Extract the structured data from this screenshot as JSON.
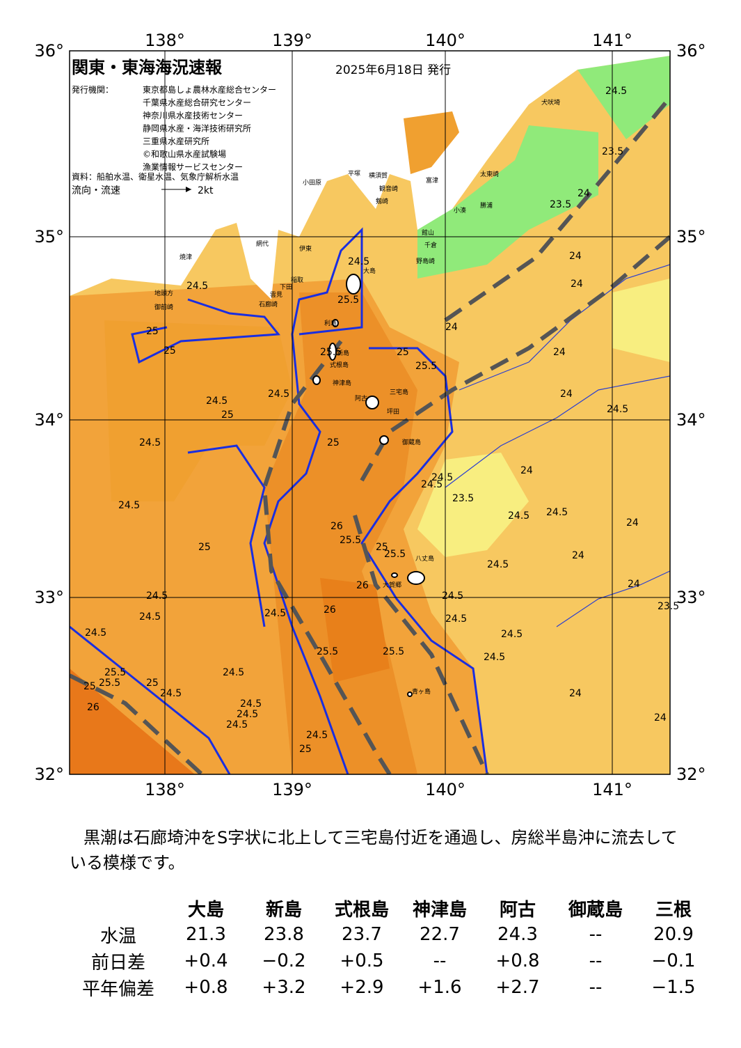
{
  "header": {
    "title": "関東・東海海況速報",
    "date": "2025年6月18日 発行",
    "issuer_label": "発行機関：",
    "issuers": [
      "東京都島しょ農林水産総合センター",
      "千葉県水産総合研究センター",
      "神奈川県水産技術センター",
      "静岡県水産・海洋技術研究所",
      "三重県水産研究所",
      "©和歌山県水産試験場",
      "漁業情報サービスセンター"
    ],
    "source": "資料：船舶水温、衛星水温、気象庁解析水温",
    "legend_label": "流向・流速",
    "legend_speed": "2kt"
  },
  "axes": {
    "lon_labels": [
      "138°",
      "139°",
      "140°",
      "141°"
    ],
    "lat_labels": [
      "36°",
      "35°",
      "34°",
      "33°",
      "32°"
    ]
  },
  "places": [
    "犬吠埼",
    "太東崎",
    "勝浦",
    "小湊",
    "富津",
    "館山",
    "千倉",
    "野島崎",
    "横須賀",
    "観音崎",
    "剱崎",
    "平塚",
    "小田原",
    "網代",
    "伊東",
    "稲取",
    "下田",
    "雲見",
    "石廊崎",
    "焼津",
    "地頭方",
    "御前崎",
    "大島",
    "利島",
    "新島",
    "式根島",
    "神津島",
    "三宅島",
    "阿古",
    "坪田",
    "御蔵島",
    "八丈島",
    "大賀郷",
    "青ヶ島"
  ],
  "contour_labels": [
    "24.5",
    "23.5",
    "24",
    "23.5",
    "24",
    "24",
    "24",
    "24",
    "24",
    "24.5",
    "24",
    "24.5",
    "23.5",
    "24",
    "24.5",
    "24.5",
    "24",
    "24",
    "24",
    "24",
    "23.5",
    "24.5",
    "24.5",
    "24.5",
    "25",
    "25.5",
    "24.5",
    "25",
    "25",
    "24.5",
    "25",
    "24.5",
    "24.5",
    "24.5",
    "25",
    "24.5",
    "24.5",
    "25",
    "24.5",
    "25.5",
    "26",
    "24.5",
    "24.5",
    "24.5",
    "25.5",
    "25.5",
    "25.5",
    "26",
    "26",
    "25.5",
    "25.5",
    "24.5",
    "25",
    "25",
    "25.5",
    "24.5",
    "24.5",
    "24.5",
    "24.5",
    "24.5",
    "25",
    "25",
    "26",
    "25.5",
    "24.5",
    "24.5"
  ],
  "description": "黒潮は石廊埼沖をS字状に北上して三宅島付近を通過し、房総半島沖に流去している模様です。",
  "table": {
    "columns": [
      "大島",
      "新島",
      "式根島",
      "神津島",
      "阿古",
      "御蔵島",
      "三根"
    ],
    "rows": [
      {
        "label": "水温",
        "values": [
          "21.3",
          "23.8",
          "23.7",
          "22.7",
          "24.3",
          "--",
          "20.9"
        ]
      },
      {
        "label": "前日差",
        "values": [
          "+0.4",
          "−0.2",
          "+0.5",
          "--",
          "+0.8",
          "--",
          "−0.1"
        ]
      },
      {
        "label": "平年偏差",
        "values": [
          "+0.8",
          "+3.2",
          "+2.9",
          "+1.6",
          "+2.7",
          "--",
          "−1.5"
        ]
      }
    ]
  }
}
